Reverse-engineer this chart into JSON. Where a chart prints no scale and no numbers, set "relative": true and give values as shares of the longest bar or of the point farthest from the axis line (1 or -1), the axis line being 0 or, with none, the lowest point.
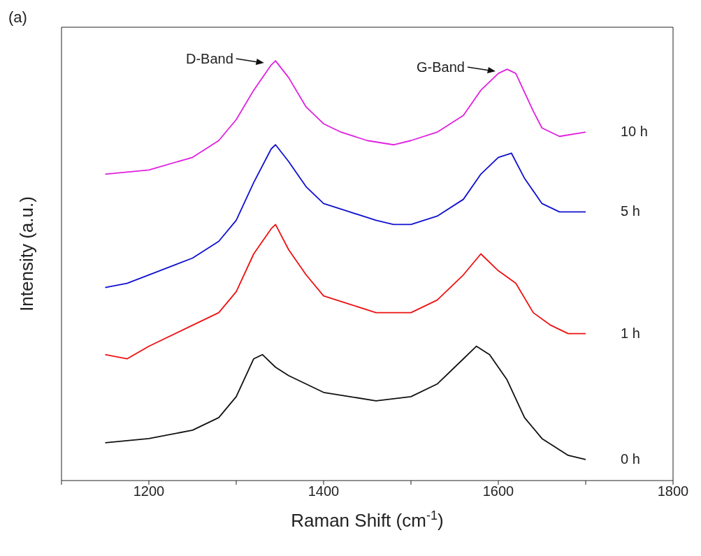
{
  "chart_data": {
    "type": "line",
    "relative": true,
    "xlabel": "Raman Shift (cm$^{-1}$)",
    "ylabel": "Intensity (a.u.)",
    "xlim": [
      1100,
      1800
    ],
    "xticks": [
      {
        "value": 1100,
        "label": null
      },
      1200,
      {
        "value": 1300,
        "label": null
      },
      1400,
      {
        "value": 1500,
        "label": null
      },
      1600,
      {
        "value": 1700,
        "label": null
      },
      1800
    ],
    "line_style": "solid",
    "annotations": [
      "(a)",
      {
        "text": "D-Band",
        "x": 1335,
        "y": 0.99
      },
      {
        "text": "G-Band",
        "x": 1600,
        "y": 0.97
      }
    ],
    "series": [
      {
        "name": "10 h",
        "color": "#e020e0",
        "x": [
          1150,
          1200,
          1250,
          1280,
          1300,
          1320,
          1340,
          1345,
          1360,
          1380,
          1400,
          1420,
          1450,
          1480,
          1500,
          1530,
          1560,
          1580,
          1600,
          1610,
          1620,
          1640,
          1650,
          1670,
          1700
        ],
        "values": [
          0.73,
          0.74,
          0.77,
          0.81,
          0.86,
          0.93,
          0.99,
          1.0,
          0.96,
          0.89,
          0.85,
          0.83,
          0.81,
          0.8,
          0.81,
          0.83,
          0.87,
          0.93,
          0.97,
          0.98,
          0.97,
          0.88,
          0.84,
          0.82,
          0.83
        ]
      },
      {
        "name": "5 h",
        "color": "#1010d0",
        "x": [
          1150,
          1175,
          1200,
          1250,
          1280,
          1300,
          1320,
          1340,
          1345,
          1360,
          1380,
          1400,
          1430,
          1460,
          1480,
          1500,
          1530,
          1560,
          1580,
          1600,
          1615,
          1630,
          1650,
          1670,
          1700
        ],
        "values": [
          0.46,
          0.47,
          0.49,
          0.53,
          0.57,
          0.62,
          0.71,
          0.79,
          0.8,
          0.76,
          0.7,
          0.66,
          0.64,
          0.62,
          0.61,
          0.61,
          0.63,
          0.67,
          0.73,
          0.77,
          0.78,
          0.72,
          0.66,
          0.64,
          0.64
        ]
      },
      {
        "name": "1 h",
        "color": "#ee1010",
        "x": [
          1150,
          1175,
          1200,
          1250,
          1280,
          1300,
          1320,
          1340,
          1345,
          1360,
          1380,
          1400,
          1430,
          1460,
          1500,
          1530,
          1560,
          1580,
          1600,
          1620,
          1640,
          1660,
          1680,
          1700
        ],
        "values": [
          0.3,
          0.29,
          0.32,
          0.37,
          0.4,
          0.45,
          0.54,
          0.6,
          0.61,
          0.55,
          0.49,
          0.44,
          0.42,
          0.4,
          0.4,
          0.43,
          0.49,
          0.54,
          0.5,
          0.47,
          0.4,
          0.37,
          0.35,
          0.35
        ]
      },
      {
        "name": "0 h",
        "color": "#111111",
        "x": [
          1150,
          1200,
          1250,
          1280,
          1300,
          1320,
          1330,
          1345,
          1360,
          1400,
          1430,
          1460,
          1500,
          1530,
          1560,
          1575,
          1590,
          1610,
          1630,
          1650,
          1680,
          1700
        ],
        "values": [
          0.09,
          0.1,
          0.12,
          0.15,
          0.2,
          0.29,
          0.3,
          0.27,
          0.25,
          0.21,
          0.2,
          0.19,
          0.2,
          0.23,
          0.29,
          0.32,
          0.3,
          0.24,
          0.15,
          0.1,
          0.06,
          0.05
        ]
      }
    ]
  }
}
